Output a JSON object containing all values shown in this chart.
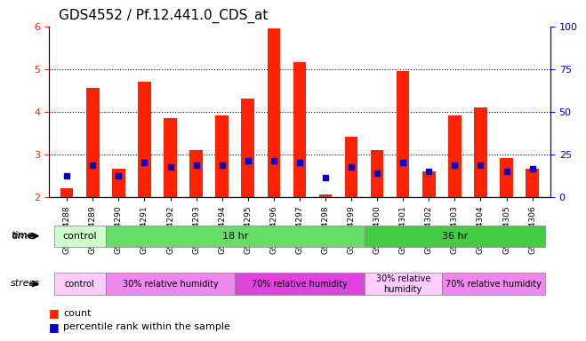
{
  "title": "GDS4552 / Pf.12.441.0_CDS_at",
  "samples": [
    "GSM624288",
    "GSM624289",
    "GSM624290",
    "GSM624291",
    "GSM624292",
    "GSM624293",
    "GSM624294",
    "GSM624295",
    "GSM624296",
    "GSM624297",
    "GSM624298",
    "GSM624299",
    "GSM624300",
    "GSM624301",
    "GSM624302",
    "GSM624303",
    "GSM624304",
    "GSM624305",
    "GSM624306"
  ],
  "count_values": [
    2.2,
    4.55,
    2.65,
    4.7,
    3.85,
    3.1,
    3.9,
    4.3,
    5.95,
    5.15,
    2.05,
    3.4,
    3.1,
    4.95,
    2.6,
    3.9,
    4.1,
    2.9,
    2.65
  ],
  "percentile_values": [
    2.5,
    2.75,
    2.5,
    2.8,
    2.7,
    2.75,
    2.75,
    2.85,
    2.85,
    2.8,
    2.45,
    2.7,
    2.55,
    2.8,
    2.6,
    2.75,
    2.75,
    2.6,
    2.65
  ],
  "ylim_left": [
    2.0,
    6.0
  ],
  "ylim_right": [
    0,
    100
  ],
  "yticks_left": [
    2,
    3,
    4,
    5,
    6
  ],
  "yticks_right": [
    0,
    25,
    50,
    75,
    100
  ],
  "bar_color": "#ff2200",
  "percentile_color": "#0000cc",
  "grid_color": "#000000",
  "background_color": "#ffffff",
  "plot_bg_color": "#ffffff",
  "time_rows": [
    {
      "label": "control",
      "start": 0,
      "end": 2,
      "color": "#ccffcc"
    },
    {
      "label": "18 hr",
      "start": 2,
      "end": 12,
      "color": "#66dd66"
    },
    {
      "label": "36 hr",
      "start": 12,
      "end": 19,
      "color": "#44cc44"
    }
  ],
  "stress_rows": [
    {
      "label": "control",
      "start": 0,
      "end": 2,
      "color": "#ffccff"
    },
    {
      "label": "30% relative humidity",
      "start": 2,
      "end": 7,
      "color": "#ee88ee"
    },
    {
      "label": "70% relative humidity",
      "start": 7,
      "end": 12,
      "color": "#dd44dd"
    },
    {
      "label": "30% relative\nhumidity",
      "start": 12,
      "end": 15,
      "color": "#ffccff"
    },
    {
      "label": "70% relative humidity",
      "start": 15,
      "end": 19,
      "color": "#ee88ee"
    }
  ],
  "legend_count_color": "#ff2200",
  "legend_pct_color": "#0000cc",
  "tick_label_color_left": "#ff2200",
  "tick_label_color_right": "#0000cc",
  "bar_width": 0.5
}
